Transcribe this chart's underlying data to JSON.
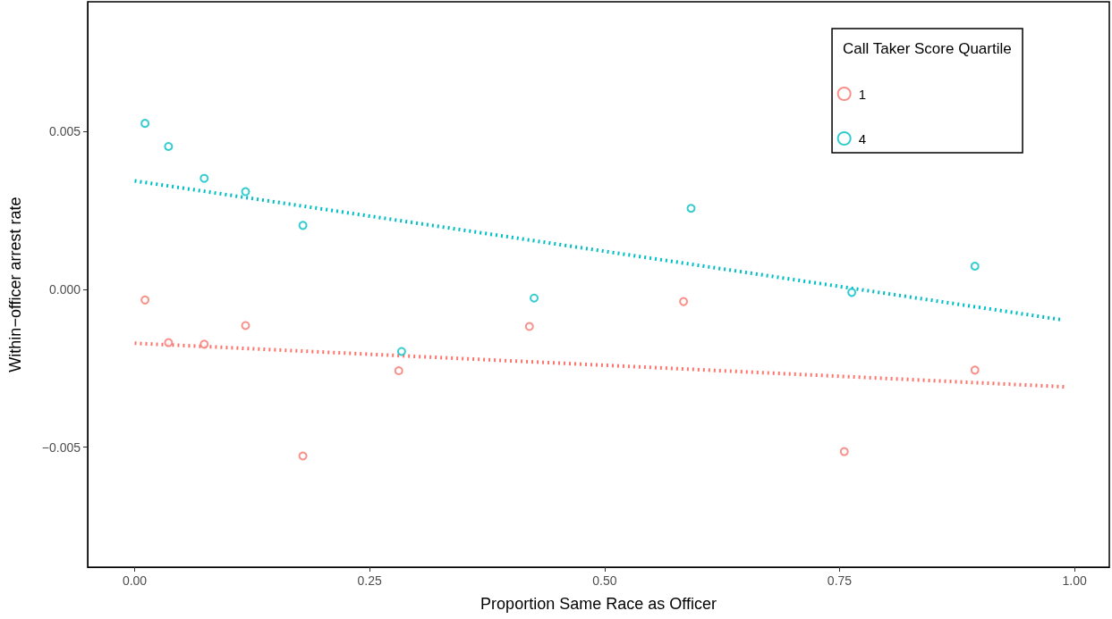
{
  "chart_data": {
    "type": "scatter",
    "xlabel": "Proportion Same Race as Officer",
    "ylabel": "Within−officer arrest rate",
    "legend_title": "Call Taker Score Quartile",
    "xlim": [
      -0.05,
      1.037
    ],
    "ylim": [
      -0.0088,
      0.0091
    ],
    "xticks": [
      {
        "value": 0,
        "label": "0.00"
      },
      {
        "value": 0.25,
        "label": "0.25"
      },
      {
        "value": 0.5,
        "label": "0.50"
      },
      {
        "value": 0.75,
        "label": "0.75"
      },
      {
        "value": 1,
        "label": "1.00"
      }
    ],
    "yticks": [
      {
        "value": -0.005,
        "label": "−0.005"
      },
      {
        "value": 0,
        "label": "0.000"
      },
      {
        "value": 0.005,
        "label": "0.005"
      }
    ],
    "grid": false,
    "legend": "top right",
    "marker": "circle",
    "series": [
      {
        "name": "1",
        "color": "#f8766d",
        "x": [
          0.011,
          0.036,
          0.074,
          0.118,
          0.179,
          0.281,
          0.42,
          0.584,
          0.755,
          0.894
        ],
        "values": [
          -0.00034,
          -0.00169,
          -0.00174,
          -0.00115,
          -0.00528,
          -0.00258,
          -0.00118,
          -0.00039,
          -0.00514,
          -0.00256
        ]
      },
      {
        "name": "4",
        "color": "#00bfc4",
        "x": [
          0.011,
          0.036,
          0.074,
          0.118,
          0.179,
          0.284,
          0.425,
          0.592,
          0.763,
          0.894
        ],
        "values": [
          0.00525,
          0.00452,
          0.00351,
          0.00309,
          0.00202,
          -0.00197,
          -0.00028,
          0.00256,
          -0.0001,
          0.00073
        ]
      },
      {
        "type": "line",
        "color": "#f8766d",
        "line_style": "dotted",
        "marker": "none",
        "x": [
          0,
          0.99
        ],
        "values": [
          -0.00171,
          -0.00309
        ]
      },
      {
        "type": "line",
        "color": "#00bfc4",
        "line_style": "dotted",
        "marker": "none",
        "x": [
          0,
          0.985
        ],
        "values": [
          0.00343,
          -0.00096
        ]
      }
    ]
  }
}
